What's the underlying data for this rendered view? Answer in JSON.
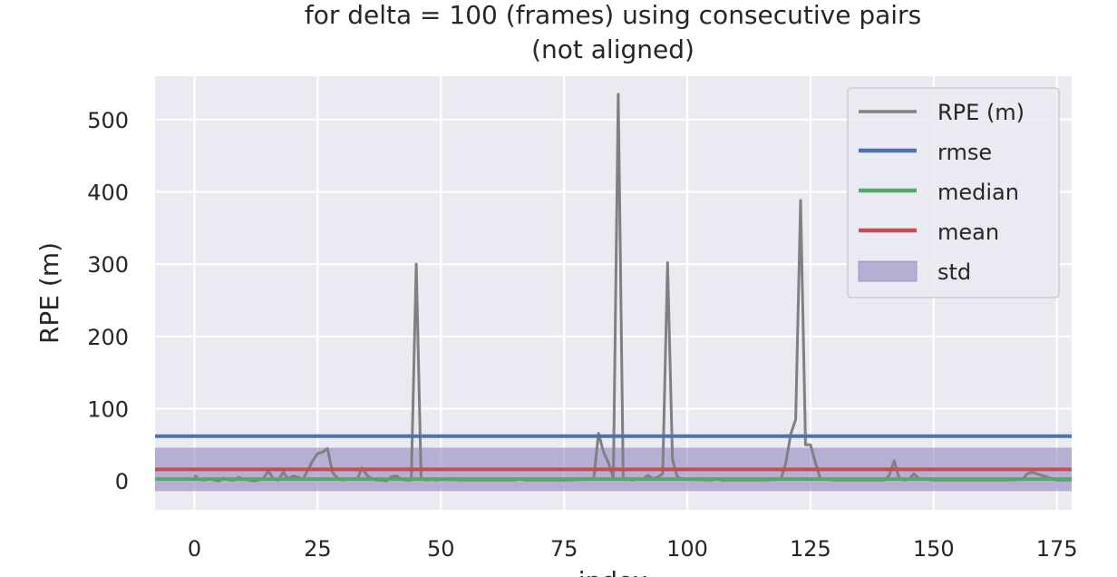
{
  "chart_data": {
    "type": "line",
    "title_lines": [
      "for delta = 100 (frames) using consecutive pairs",
      "(not aligned)"
    ],
    "xlabel": "index",
    "ylabel": "RPE (m)",
    "xlim": [
      -8,
      178
    ],
    "ylim": [
      -40,
      560
    ],
    "xticks": [
      0,
      25,
      50,
      75,
      100,
      125,
      150,
      175
    ],
    "yticks": [
      0,
      100,
      200,
      300,
      400,
      500
    ],
    "grid": true,
    "legend_position": "top-right",
    "colors": {
      "background": "#eaeaf2",
      "grid": "#ffffff",
      "rpe": "#808080",
      "rmse": "#4c72b0",
      "median": "#55a868",
      "mean": "#c44e52",
      "std": "#8172b3"
    },
    "series": [
      {
        "name": "RPE (m)",
        "x": [
          0,
          1,
          2,
          3,
          4,
          5,
          6,
          7,
          8,
          9,
          10,
          11,
          12,
          13,
          14,
          15,
          16,
          17,
          18,
          19,
          20,
          21,
          22,
          23,
          24,
          25,
          26,
          27,
          28,
          29,
          30,
          31,
          32,
          33,
          34,
          35,
          36,
          37,
          38,
          39,
          40,
          41,
          42,
          43,
          44,
          45,
          46,
          47,
          48,
          49,
          50,
          55,
          60,
          65,
          66,
          67,
          70,
          75,
          80,
          81,
          82,
          83,
          84,
          85,
          86,
          87,
          88,
          89,
          90,
          91,
          92,
          93,
          94,
          95,
          96,
          97,
          98,
          99,
          100,
          105,
          106,
          107,
          110,
          115,
          119,
          120,
          121,
          122,
          123,
          124,
          125,
          126,
          127,
          128,
          130,
          135,
          140,
          141,
          142,
          143,
          144,
          145,
          146,
          147,
          150,
          155,
          160,
          165,
          168,
          169,
          170,
          175,
          178
        ],
        "y": [
          8,
          2,
          1,
          3,
          1,
          0,
          4,
          1,
          1,
          5,
          2,
          1,
          0,
          1,
          4,
          14,
          3,
          1,
          12,
          3,
          7,
          5,
          2,
          15,
          28,
          38,
          40,
          45,
          12,
          4,
          1,
          2,
          3,
          2,
          18,
          8,
          3,
          1,
          1,
          0,
          6,
          7,
          2,
          1,
          1,
          300,
          2,
          1,
          2,
          1,
          2,
          1,
          1,
          1,
          3,
          1,
          1,
          1,
          2,
          3,
          66,
          40,
          25,
          5,
          535,
          3,
          2,
          1,
          3,
          2,
          8,
          3,
          5,
          10,
          302,
          30,
          5,
          3,
          2,
          1,
          3,
          1,
          1,
          1,
          2,
          25,
          65,
          85,
          388,
          50,
          50,
          25,
          3,
          2,
          1,
          1,
          1,
          8,
          28,
          3,
          1,
          2,
          10,
          3,
          1,
          1,
          1,
          1,
          2,
          10,
          12,
          1,
          1
        ]
      }
    ],
    "stats": [
      {
        "name": "rmse",
        "value": 62
      },
      {
        "name": "median",
        "value": 2.5
      },
      {
        "name": "mean",
        "value": 16
      }
    ],
    "std_band": {
      "name": "std",
      "low": -14,
      "high": 46
    },
    "legend": [
      "RPE (m)",
      "rmse",
      "median",
      "mean",
      "std"
    ]
  }
}
